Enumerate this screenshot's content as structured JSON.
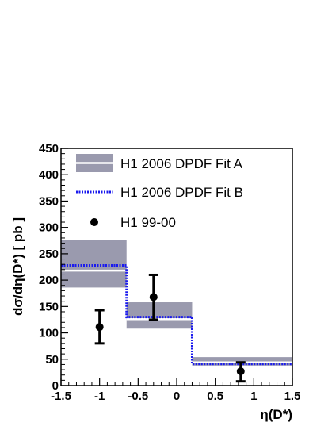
{
  "chart_data": {
    "type": "histogram-with-points",
    "xlabel": "η(D*)",
    "ylabel": "dσ/dη(D*) [ pb ]",
    "xlim": [
      -1.5,
      1.5
    ],
    "ylim": [
      0,
      450
    ],
    "x_ticks": [
      "-1.5",
      "-1",
      "-0.5",
      "0",
      "0.5",
      "1",
      "1.5"
    ],
    "y_ticks": [
      "0",
      "50",
      "100",
      "150",
      "200",
      "250",
      "300",
      "350",
      "400",
      "450"
    ],
    "bins": [
      {
        "x_low": -1.5,
        "x_high": -0.65,
        "fitA_low": 186,
        "fitA_high": 276,
        "fitA_center": 218,
        "fitB": 228
      },
      {
        "x_low": -0.65,
        "x_high": 0.2,
        "fitA_low": 108,
        "fitA_high": 158,
        "fitA_center": 126,
        "fitB": 130
      },
      {
        "x_low": 0.2,
        "x_high": 1.5,
        "fitA_low": 38,
        "fitA_high": 54,
        "fitA_center": 44,
        "fitB": 41
      }
    ],
    "series": [
      {
        "name": "H1 2006 DPDF Fit A",
        "style": "band",
        "color": "#9a9aae"
      },
      {
        "name": "H1 2006 DPDF Fit B",
        "style": "dotted-line",
        "color": "#1a1aee"
      },
      {
        "name": "H1 99-00",
        "style": "points",
        "color": "#000000",
        "points": [
          {
            "x": -1.0,
            "y": 111,
            "err_low": 80,
            "err_high": 143
          },
          {
            "x": -0.3,
            "y": 168,
            "err_low": 125,
            "err_high": 210
          },
          {
            "x": 0.83,
            "y": 27,
            "err_low": 8,
            "err_high": 44
          }
        ]
      }
    ],
    "legend": [
      "H1 2006 DPDF Fit A",
      "H1 2006 DPDF Fit B",
      "H1 99-00"
    ],
    "legend_position": "top-right",
    "grid": false
  }
}
